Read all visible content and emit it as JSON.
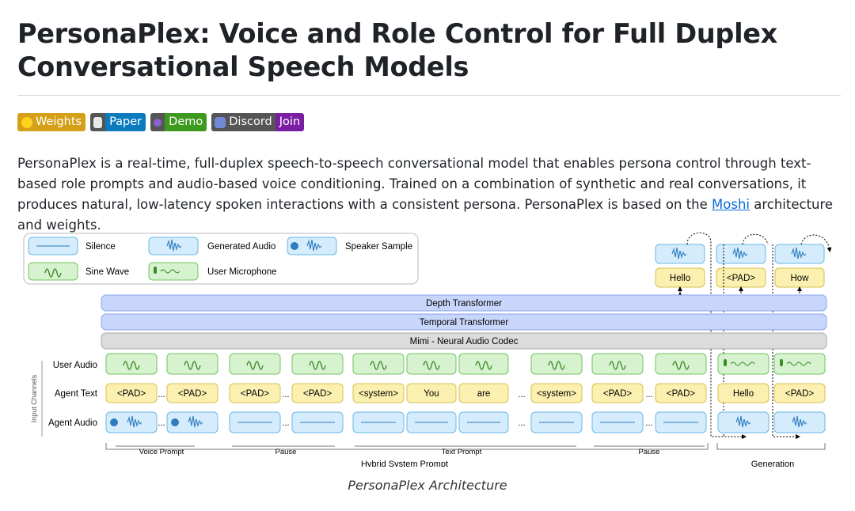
{
  "title": "PersonaPlex: Voice and Role Control for Full Duplex Conversational Speech Models",
  "badges": [
    {
      "label": "Weights",
      "icon": "hugging-face-icon",
      "color": "#d4a017"
    },
    {
      "label": "Paper",
      "icon": "document-icon",
      "color": "#0a7bbd"
    },
    {
      "label": "Demo",
      "icon": "demo-icon",
      "color": "#3d9a1f"
    },
    {
      "label": "Discord",
      "value": "Join",
      "icon": "discord-icon",
      "color": "#7a1fa2"
    }
  ],
  "intro": {
    "before_link": "PersonaPlex is a real-time, full-duplex speech-to-speech conversational model that enables persona control through text-based role prompts and audio-based voice conditioning. Trained on a combination of synthetic and real conversations, it produces natural, low-latency spoken interactions with a consistent persona. PersonaPlex is based on the ",
    "link": "Moshi",
    "after_link": " architecture and weights."
  },
  "figure": {
    "legend": {
      "silence": "Silence",
      "sine_wave": "Sine Wave",
      "generated_audio": "Generated Audio",
      "user_microphone": "User Microphone",
      "speaker_sample": "Speaker Sample"
    },
    "outputs": [
      "Hello",
      "<PAD>",
      "How"
    ],
    "layers": [
      "Depth Transformer",
      "Temporal Transformer",
      "Mimi - Neural Audio Codec"
    ],
    "input_channels_label": "Input Channels",
    "rows": [
      "User Audio",
      "Agent Text",
      "Agent Audio"
    ],
    "agent_text_tokens": [
      "<PAD>",
      "<PAD>",
      "<PAD>",
      "<PAD>",
      "<system>",
      "You",
      "are",
      "<system>",
      "<PAD>",
      "<PAD>",
      "Hello",
      "<PAD>"
    ],
    "ellipsis": "...",
    "segments": [
      "Voice Prompt",
      "Pause",
      "Text Prompt",
      "Pause"
    ],
    "groups": [
      "Hybrid System Prompt",
      "Generation"
    ]
  },
  "caption": "PersonaPlex Architecture"
}
